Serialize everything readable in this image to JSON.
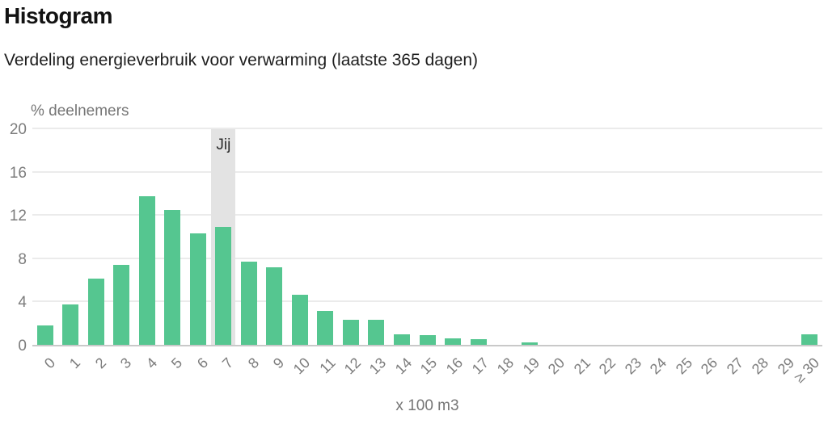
{
  "page": {
    "title": "Histogram",
    "subtitle": "Verdeling energieverbruik voor verwarming (laatste 365 dagen)"
  },
  "chart_data": {
    "type": "bar",
    "title": "Histogram",
    "subtitle": "Verdeling energieverbruik voor verwarming (laatste 365 dagen)",
    "ylabel": "% deelnemers",
    "xlabel": "x 100 m3",
    "ylim": [
      0,
      20
    ],
    "yticks": [
      0,
      4,
      8,
      12,
      16,
      20
    ],
    "grid": true,
    "legend": "none",
    "categories": [
      "0",
      "1",
      "2",
      "3",
      "4",
      "5",
      "6",
      "7",
      "8",
      "9",
      "10",
      "11",
      "12",
      "13",
      "14",
      "15",
      "16",
      "17",
      "18",
      "19",
      "20",
      "21",
      "22",
      "23",
      "24",
      "25",
      "26",
      "27",
      "28",
      "29",
      "≥ 30"
    ],
    "values": [
      1.8,
      3.7,
      6.1,
      7.4,
      13.7,
      12.5,
      10.3,
      10.9,
      7.7,
      7.2,
      4.6,
      3.1,
      2.3,
      2.3,
      1.0,
      0.9,
      0.6,
      0.5,
      0,
      0.2,
      0,
      0,
      0,
      0,
      0,
      0,
      0,
      0,
      0,
      0,
      1.0
    ],
    "highlight": {
      "category": "7",
      "index": 7,
      "label": "Jij",
      "band_color": "#e3e3e3"
    },
    "colors": {
      "bar": "#55c690",
      "grid": "#ebebeb",
      "axis_line": "#c9c9c9",
      "tick_text": "#7c7c7c",
      "title_text": "#121212"
    }
  }
}
